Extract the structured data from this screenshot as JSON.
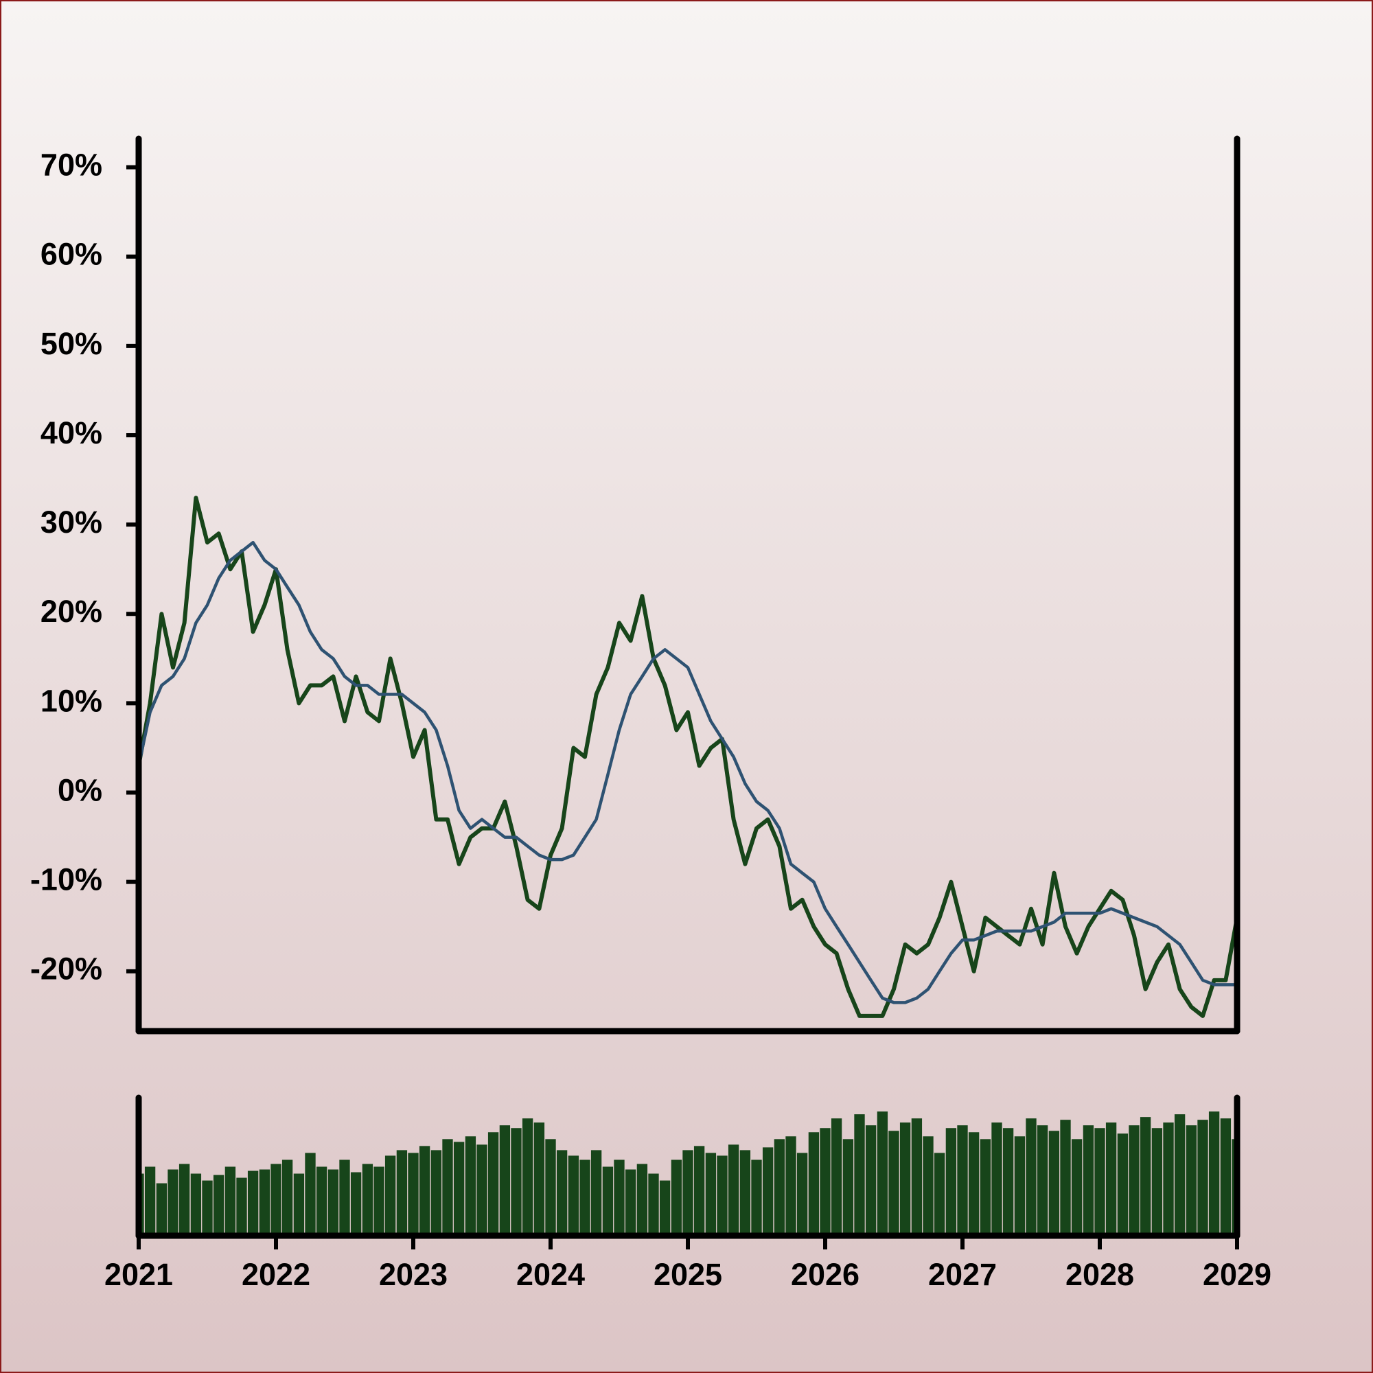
{
  "chart_data": [
    {
      "type": "line",
      "x": [
        2021,
        2021.083,
        2021.167,
        2021.25,
        2021.333,
        2021.417,
        2021.5,
        2021.583,
        2021.667,
        2021.75,
        2021.833,
        2021.917,
        2022,
        2022.083,
        2022.167,
        2022.25,
        2022.333,
        2022.417,
        2022.5,
        2022.583,
        2022.667,
        2022.75,
        2022.833,
        2022.917,
        2023,
        2023.083,
        2023.167,
        2023.25,
        2023.333,
        2023.417,
        2023.5,
        2023.583,
        2023.667,
        2023.75,
        2023.833,
        2023.917,
        2024,
        2024.083,
        2024.167,
        2024.25,
        2024.333,
        2024.417,
        2024.5,
        2024.583,
        2024.667,
        2024.75,
        2024.833,
        2024.917,
        2025,
        2025.083,
        2025.167,
        2025.25,
        2025.333,
        2025.417,
        2025.5,
        2025.583,
        2025.667,
        2025.75,
        2025.833,
        2025.917,
        2026,
        2026.083,
        2026.167,
        2026.25,
        2026.333,
        2026.417,
        2026.5,
        2026.583,
        2026.667,
        2026.75,
        2026.833,
        2026.917,
        2027,
        2027.083,
        2027.167,
        2027.25,
        2027.333,
        2027.417,
        2027.5,
        2027.583,
        2027.667,
        2027.75,
        2027.833,
        2027.917,
        2028,
        2028.083,
        2028.167,
        2028.25,
        2028.333,
        2028.417,
        2028.5,
        2028.583,
        2028.667,
        2028.75,
        2028.833,
        2028.917,
        2029
      ],
      "series": [
        {
          "color": "#17451a",
          "values": [
            3,
            10,
            20,
            14,
            19,
            33,
            28,
            29,
            25,
            27,
            18,
            21,
            25,
            16,
            10,
            12,
            12,
            13,
            8,
            13,
            9,
            8,
            15,
            10,
            4,
            7,
            -3,
            -3,
            -8,
            -5,
            -4,
            -4,
            -1,
            -6,
            -12,
            -13,
            -7,
            -4,
            5,
            4,
            11,
            14,
            19,
            17,
            22,
            15,
            12,
            7,
            9,
            3,
            5,
            6,
            -3,
            -8,
            -4,
            -3,
            -6,
            -13,
            -12,
            -15,
            -17,
            -18,
            -22,
            -25,
            -25,
            -25,
            -22,
            -17,
            -18,
            -17,
            -14,
            -10,
            -15,
            -20,
            -14,
            -15,
            -16,
            -17,
            -13,
            -17,
            -9,
            -15,
            -18,
            -15,
            -13,
            -11,
            -12,
            -16,
            -22,
            -19,
            -17,
            -22,
            -24,
            -25,
            -21,
            -21,
            -14
          ]
        },
        {
          "color": "#2e5272",
          "values": [
            3,
            9,
            12,
            13,
            15,
            19,
            21,
            24,
            26,
            27,
            28,
            26,
            25,
            23,
            21,
            18,
            16,
            15,
            13,
            12,
            12,
            11,
            11,
            11,
            10,
            9,
            7,
            3,
            -2,
            -4,
            -3,
            -4,
            -5,
            -5,
            -6,
            -7,
            -7.5,
            -7.5,
            -7,
            -5,
            -3,
            2,
            7,
            11,
            13,
            15,
            16,
            15,
            14,
            11,
            8,
            6,
            4,
            1,
            -1,
            -2,
            -4,
            -8,
            -9,
            -10,
            -13,
            -15,
            -17,
            -19,
            -21,
            -23,
            -23.5,
            -23.5,
            -23,
            -22,
            -20,
            -18,
            -16.5,
            -16.5,
            -16,
            -15.5,
            -15.5,
            -15.5,
            -15.5,
            -15,
            -14.5,
            -13.5,
            -13.5,
            -13.5,
            -13.5,
            -13,
            -13.5,
            -14,
            -14.5,
            -15,
            -16,
            -17,
            -19,
            -21,
            -21.5,
            -21.5,
            -21.5
          ]
        }
      ],
      "xlim": [
        2021,
        2029
      ],
      "ylim": [
        -26.7,
        73.2
      ],
      "yticks": [
        {
          "value": -20,
          "label": "-20%"
        },
        {
          "value": -10,
          "label": "-10%"
        },
        {
          "value": 0,
          "label": "0%"
        },
        {
          "value": 10,
          "label": "10%"
        },
        {
          "value": 20,
          "label": "20%"
        },
        {
          "value": 30,
          "label": "30%"
        },
        {
          "value": 40,
          "label": "40%"
        },
        {
          "value": 50,
          "label": "50%"
        },
        {
          "value": 60,
          "label": "60%"
        },
        {
          "value": 70,
          "label": "70%"
        }
      ]
    },
    {
      "type": "bar",
      "x": [
        2021,
        2021.083,
        2021.167,
        2021.25,
        2021.333,
        2021.417,
        2021.5,
        2021.583,
        2021.667,
        2021.75,
        2021.833,
        2021.917,
        2022,
        2022.083,
        2022.167,
        2022.25,
        2022.333,
        2022.417,
        2022.5,
        2022.583,
        2022.667,
        2022.75,
        2022.833,
        2022.917,
        2023,
        2023.083,
        2023.167,
        2023.25,
        2023.333,
        2023.417,
        2023.5,
        2023.583,
        2023.667,
        2023.75,
        2023.833,
        2023.917,
        2024,
        2024.083,
        2024.167,
        2024.25,
        2024.333,
        2024.417,
        2024.5,
        2024.583,
        2024.667,
        2024.75,
        2024.833,
        2024.917,
        2025,
        2025.083,
        2025.167,
        2025.25,
        2025.333,
        2025.417,
        2025.5,
        2025.583,
        2025.667,
        2025.75,
        2025.833,
        2025.917,
        2026,
        2026.083,
        2026.167,
        2026.25,
        2026.333,
        2026.417,
        2026.5,
        2026.583,
        2026.667,
        2026.75,
        2026.833,
        2026.917,
        2027,
        2027.083,
        2027.167,
        2027.25,
        2027.333,
        2027.417,
        2027.5,
        2027.583,
        2027.667,
        2027.75,
        2027.833,
        2027.917,
        2028,
        2028.083,
        2028.167,
        2028.25,
        2028.333,
        2028.417,
        2028.5,
        2028.583,
        2028.667,
        2028.75,
        2028.833,
        2028.917,
        2029
      ],
      "values": [
        45,
        50,
        38,
        48,
        52,
        45,
        40,
        44,
        50,
        42,
        47,
        48,
        52,
        55,
        45,
        60,
        50,
        48,
        55,
        46,
        52,
        50,
        58,
        62,
        60,
        65,
        62,
        70,
        68,
        72,
        66,
        75,
        80,
        78,
        85,
        82,
        70,
        62,
        58,
        55,
        62,
        50,
        55,
        48,
        52,
        45,
        40,
        55,
        62,
        65,
        60,
        58,
        66,
        62,
        55,
        64,
        70,
        72,
        60,
        75,
        78,
        85,
        70,
        88,
        80,
        90,
        76,
        82,
        85,
        72,
        60,
        78,
        80,
        75,
        70,
        82,
        78,
        72,
        85,
        80,
        76,
        84,
        70,
        80,
        78,
        82,
        74,
        80,
        86,
        78,
        82,
        88,
        80,
        84,
        90,
        85,
        70
      ],
      "color": "#17451a",
      "xlim": [
        2021,
        2029
      ],
      "ylim": [
        0,
        100
      ],
      "xticks": [
        2021,
        2022,
        2023,
        2024,
        2025,
        2026,
        2027,
        2028,
        2029
      ]
    }
  ]
}
